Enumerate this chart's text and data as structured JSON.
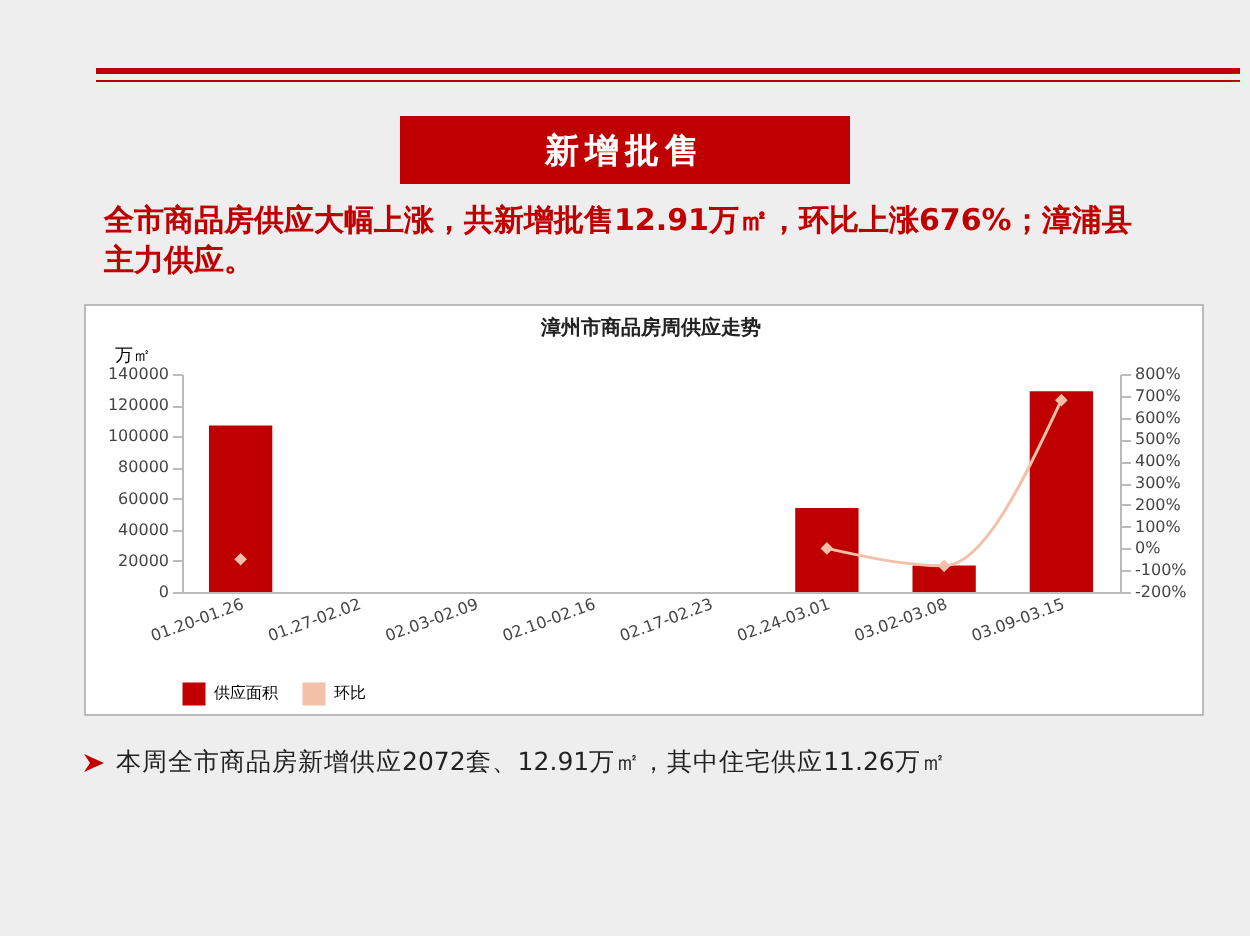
{
  "chart_data": {
    "type": "bar",
    "title": "漳州市商品房周供应走势",
    "ylabel": "万㎡",
    "annotations": [
      "新增批售",
      "全市商品房供应大幅上涨，共新增批售12.91万㎡，环比上涨676%；漳浦县主力供应。",
      "本周全市商品房新增供应2072套、12.91万㎡，其中住宅供应11.26万㎡"
    ],
    "categories": [
      "01.20-01.26",
      "01.27-02.02",
      "02.03-02.09",
      "02.10-02.16",
      "02.17-02.23",
      "02.24-03.01",
      "03.02-03.08",
      "03.09-03.15"
    ],
    "series": [
      {
        "name": "供应面积",
        "color": "#c00000",
        "values": [
          107000,
          null,
          null,
          null,
          null,
          54000,
          17000,
          129000
        ]
      },
      {
        "name": "环比",
        "type": "line",
        "axis": "y2",
        "color": "#f4c0a8",
        "marker": "diamond",
        "line_style": "solid",
        "values": [
          -50,
          null,
          null,
          null,
          null,
          0,
          -80,
          680
        ]
      }
    ],
    "ylim": [
      0,
      140000
    ],
    "yticks": [
      0,
      20000,
      40000,
      60000,
      80000,
      100000,
      120000,
      140000
    ],
    "y2lim": [
      -200,
      800
    ],
    "y2ticks": [
      {
        "value": -200,
        "label": "-200%"
      },
      {
        "value": -100,
        "label": "-100%"
      },
      {
        "value": 0,
        "label": "0%"
      },
      {
        "value": 100,
        "label": "100%"
      },
      {
        "value": 200,
        "label": "200%"
      },
      {
        "value": 300,
        "label": "300%"
      },
      {
        "value": 400,
        "label": "400%"
      },
      {
        "value": 500,
        "label": "500%"
      },
      {
        "value": 600,
        "label": "600%"
      },
      {
        "value": 700,
        "label": "700%"
      },
      {
        "value": 800,
        "label": "800%"
      }
    ],
    "grid": false,
    "legend": "bottom"
  }
}
